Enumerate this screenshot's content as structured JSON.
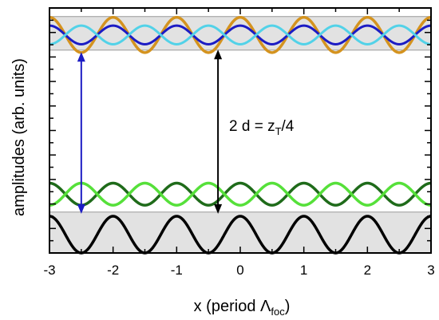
{
  "chart_data": {
    "type": "line",
    "xlabel": "x (period Λ",
    "xlabel_sub": "foc",
    "xlabel_close": ")",
    "ylabel": "amplitudes (arb. units)",
    "xlim": [
      -3,
      3
    ],
    "ylim": [
      0,
      10
    ],
    "x_ticks": [
      -3,
      -2,
      -1,
      0,
      1,
      2,
      3
    ],
    "x_tick_labels": [
      "-3",
      "-2",
      "-1",
      "0",
      "1",
      "2",
      "3"
    ],
    "y_tick_labels_shown": false,
    "grid": false,
    "legend": "none",
    "bands": [
      {
        "name": "",
        "y0": 8.28,
        "y1": 9.65,
        "color": "#e2e2e2"
      },
      {
        "name": "",
        "y0": 0,
        "y1": 1.67,
        "color": "#e2e2e2"
      }
    ],
    "series": [
      {
        "key": "orange",
        "color": "#d4931f",
        "formula": "cos(2πx)",
        "offset": 8.9,
        "amplitude": 0.72,
        "period": 1,
        "phase": 0,
        "stroke": "thick"
      },
      {
        "key": "blue",
        "color": "#1c1cc4",
        "formula": "cos(2πx)",
        "offset": 8.9,
        "amplitude": 0.38,
        "period": 1,
        "phase": 0,
        "stroke": "medium"
      },
      {
        "key": "cyan",
        "color": "#52d2e8",
        "formula": "-cos(2πx)",
        "offset": 8.9,
        "amplitude": 0.38,
        "period": 1,
        "phase": 0.5,
        "stroke": "medium"
      },
      {
        "key": "dark-green",
        "color": "#1f6b1a",
        "formula": "cos(2πx)",
        "offset": 2.4,
        "amplitude": 0.45,
        "period": 1,
        "phase": 0,
        "stroke": "thick"
      },
      {
        "key": "light-green",
        "color": "#56e03a",
        "formula": "-cos(2πx)",
        "offset": 2.4,
        "amplitude": 0.45,
        "period": 1,
        "phase": 0.5,
        "stroke": "thick"
      },
      {
        "key": "black",
        "color": "#000000",
        "formula": "cos^2(πx)",
        "offset": 0,
        "amplitude": 1.5,
        "period": 1,
        "phase": 0.5,
        "stroke": "thick"
      }
    ],
    "annotations": [
      {
        "key": "blue-arrow",
        "color": "#1c1cc4",
        "x": -2.5,
        "y_from": 8.2,
        "y_to": 1.6,
        "double_headed": true
      },
      {
        "key": "black-arrow",
        "color": "#000000",
        "x": -0.35,
        "y_from": 8.3,
        "y_to": 1.6,
        "double_headed": true
      }
    ],
    "annotation_text": {
      "prefix": "2 d = z",
      "sub": "T",
      "suffix": "/4"
    }
  }
}
